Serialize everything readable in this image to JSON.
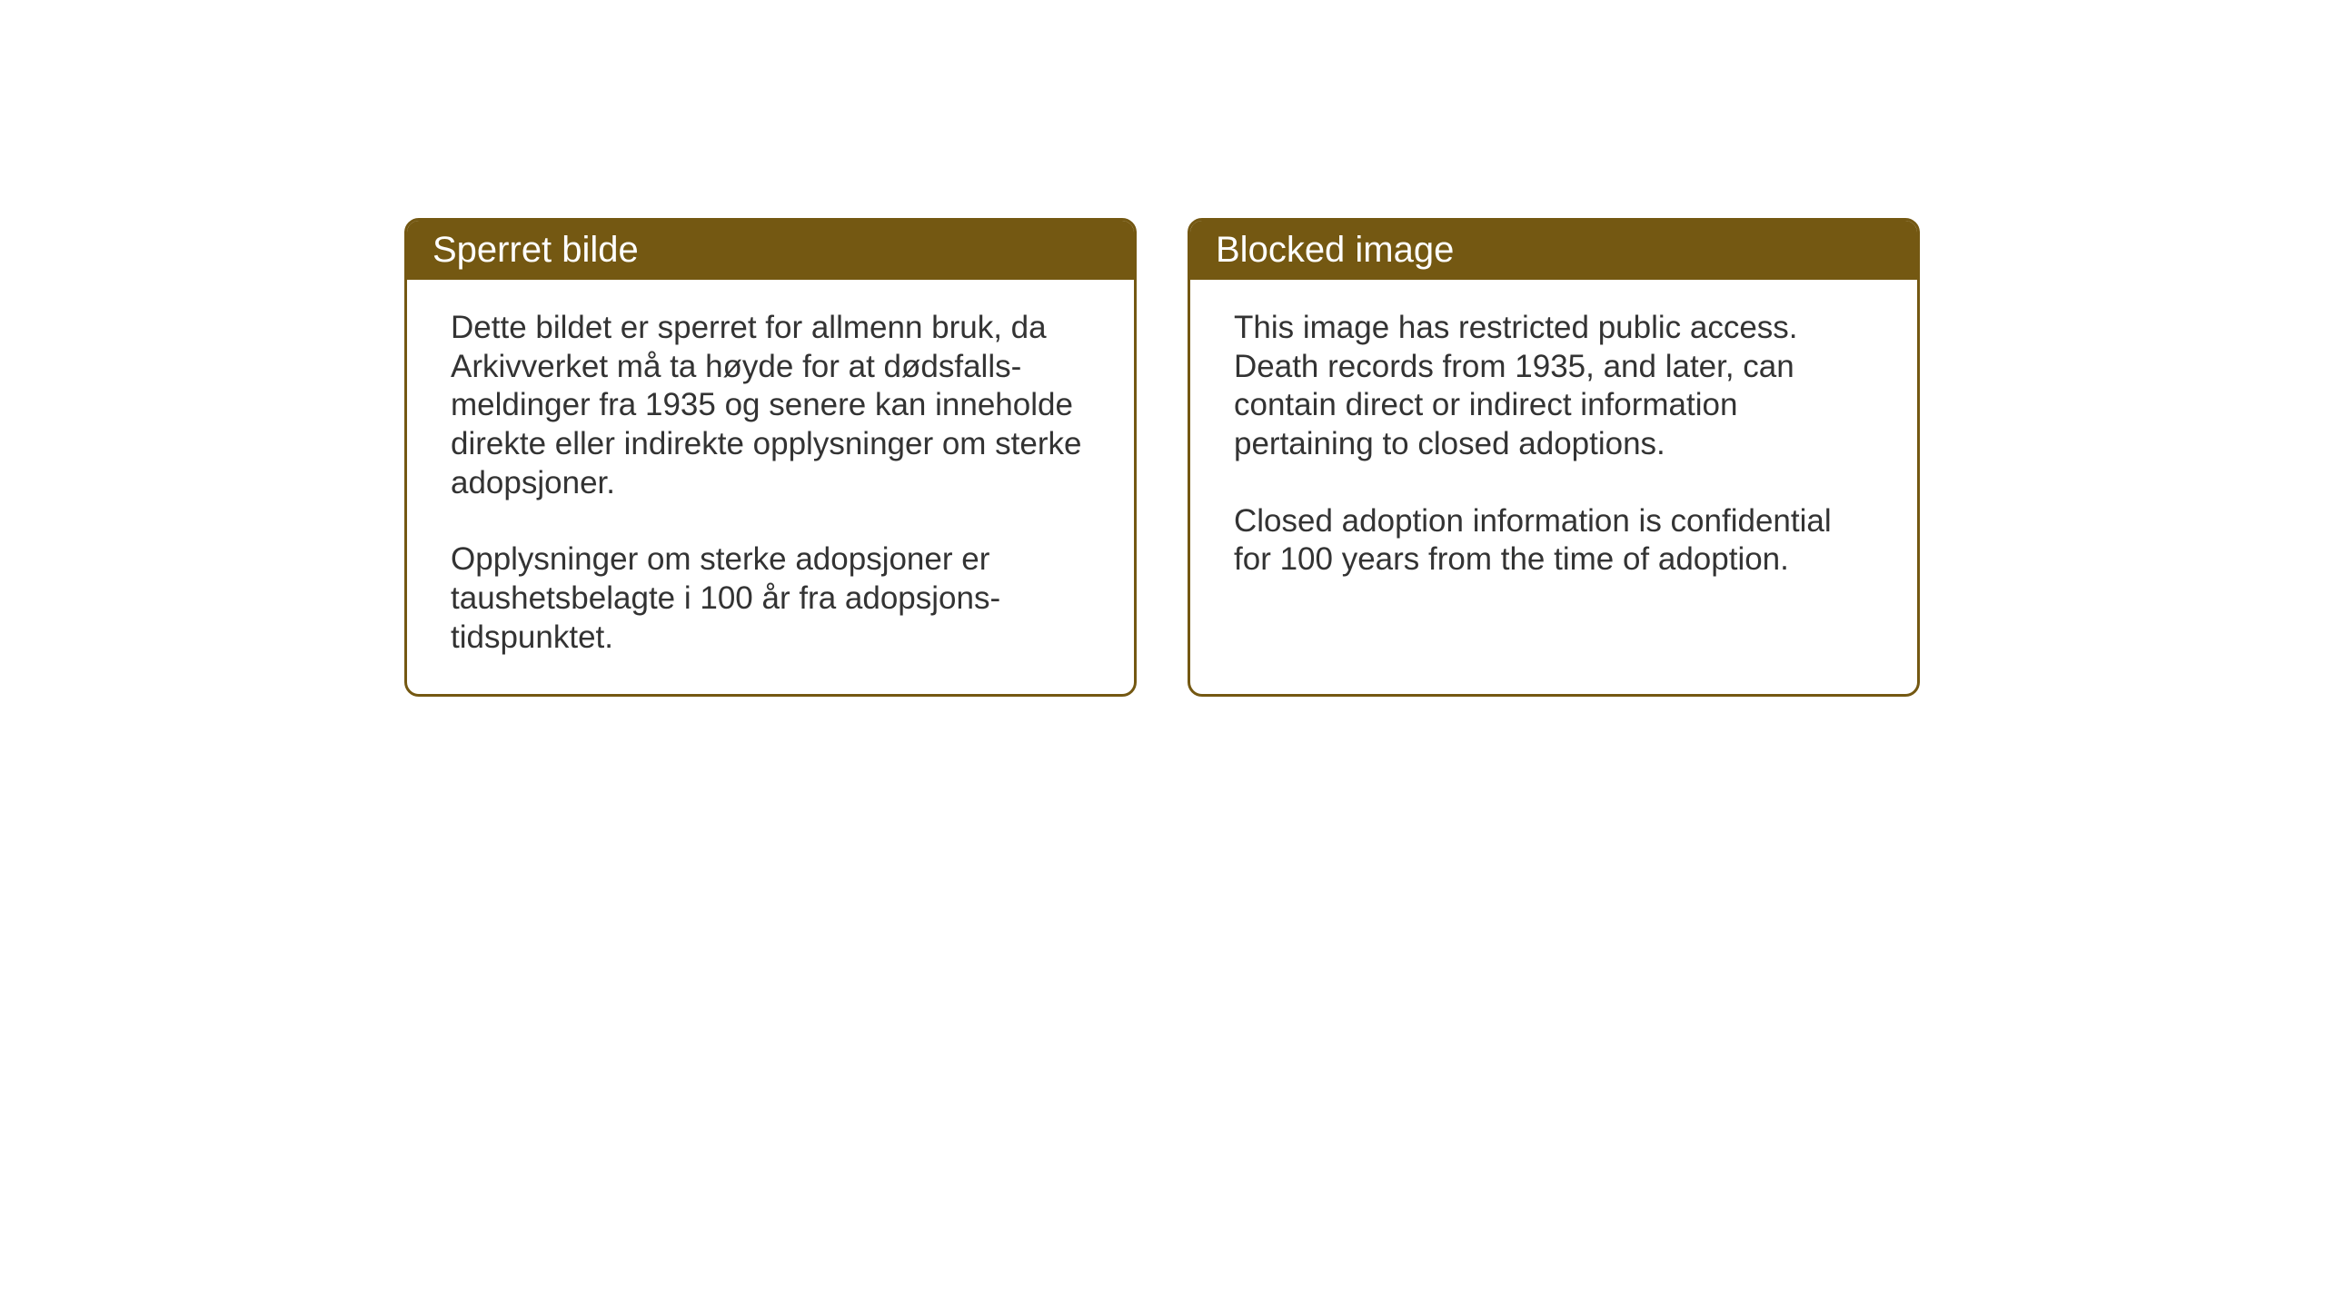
{
  "background_color": "#ffffff",
  "card_border_color": "#745812",
  "card_header_bg": "#745812",
  "card_header_text_color": "#ffffff",
  "card_body_text_color": "#333333",
  "header_fontsize": 40,
  "body_fontsize": 35,
  "cards": [
    {
      "header": "Sperret bilde",
      "paragraphs": [
        "Dette bildet er sperret for allmenn bruk, da Arkivverket må ta høyde for at dødsfalls-meldinger fra 1935 og senere kan inneholde direkte eller indirekte opplysninger om sterke adopsjoner.",
        "Opplysninger om sterke adopsjoner er taushetsbelagte i 100 år fra adopsjons-tidspunktet."
      ]
    },
    {
      "header": "Blocked image",
      "paragraphs": [
        "This image has restricted public access. Death records from 1935, and later, can contain direct or indirect information pertaining to closed adoptions.",
        "Closed adoption information is confidential for 100 years from the time of adoption."
      ]
    }
  ]
}
